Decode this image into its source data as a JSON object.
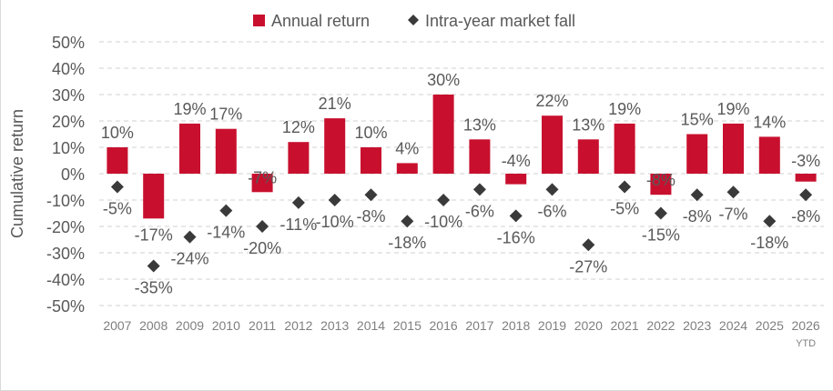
{
  "chart_data": {
    "type": "bar",
    "categories": [
      "2007",
      "2008",
      "2009",
      "2010",
      "2011",
      "2012",
      "2013",
      "2014",
      "2015",
      "2016",
      "2017",
      "2018",
      "2019",
      "2020",
      "2021",
      "2022",
      "2023",
      "2024",
      "2025",
      "2026"
    ],
    "category_sublabels": {
      "2026": "YTD"
    },
    "series": [
      {
        "name": "Annual return",
        "type": "bar",
        "values": [
          10,
          -17,
          19,
          17,
          -7,
          12,
          21,
          10,
          4,
          30,
          13,
          -4,
          22,
          13,
          19,
          -8,
          15,
          19,
          14,
          -3
        ],
        "labels": [
          "10%",
          "-17%",
          "19%",
          "17%",
          "-7%",
          "12%",
          "21%",
          "10%",
          "4%",
          "30%",
          "13%",
          "-4%",
          "22%",
          "13%",
          "19%",
          "-8%",
          "15%",
          "19%",
          "14%",
          "-3%"
        ]
      },
      {
        "name": "Intra-year market fall",
        "type": "scatter",
        "values": [
          -5,
          -35,
          -24,
          -14,
          -20,
          -11,
          -10,
          -8,
          -18,
          -10,
          -6,
          -16,
          -6,
          -27,
          -5,
          -15,
          -8,
          -7,
          -18,
          -8
        ],
        "labels": [
          "-5%",
          "-35%",
          "-24%",
          "-14%",
          "-20%",
          "-11%",
          "-10%",
          "-8%",
          "-18%",
          "-10%",
          "-6%",
          "-16%",
          "-6%",
          "-27%",
          "-5%",
          "-15%",
          "-8%",
          "-7%",
          "-18%",
          "-8%"
        ]
      }
    ],
    "ylabel": "Cumulative return",
    "xlabel": "",
    "ylim": [
      -50,
      50
    ],
    "yticks": [
      50,
      40,
      30,
      20,
      10,
      0,
      -10,
      -20,
      -30,
      -40,
      -50
    ],
    "ytick_labels": [
      "50%",
      "40%",
      "30%",
      "20%",
      "10%",
      "0%",
      "-10%",
      "-20%",
      "-30%",
      "-40%",
      "-50%"
    ],
    "grid": "horizontal dashed",
    "legend": "top-center",
    "colors": {
      "bar": "#c8102e",
      "marker": "#3a3a3a",
      "grid": "#d0d0d0",
      "text": "#595959",
      "axis_text": "#7f7f7f"
    }
  }
}
